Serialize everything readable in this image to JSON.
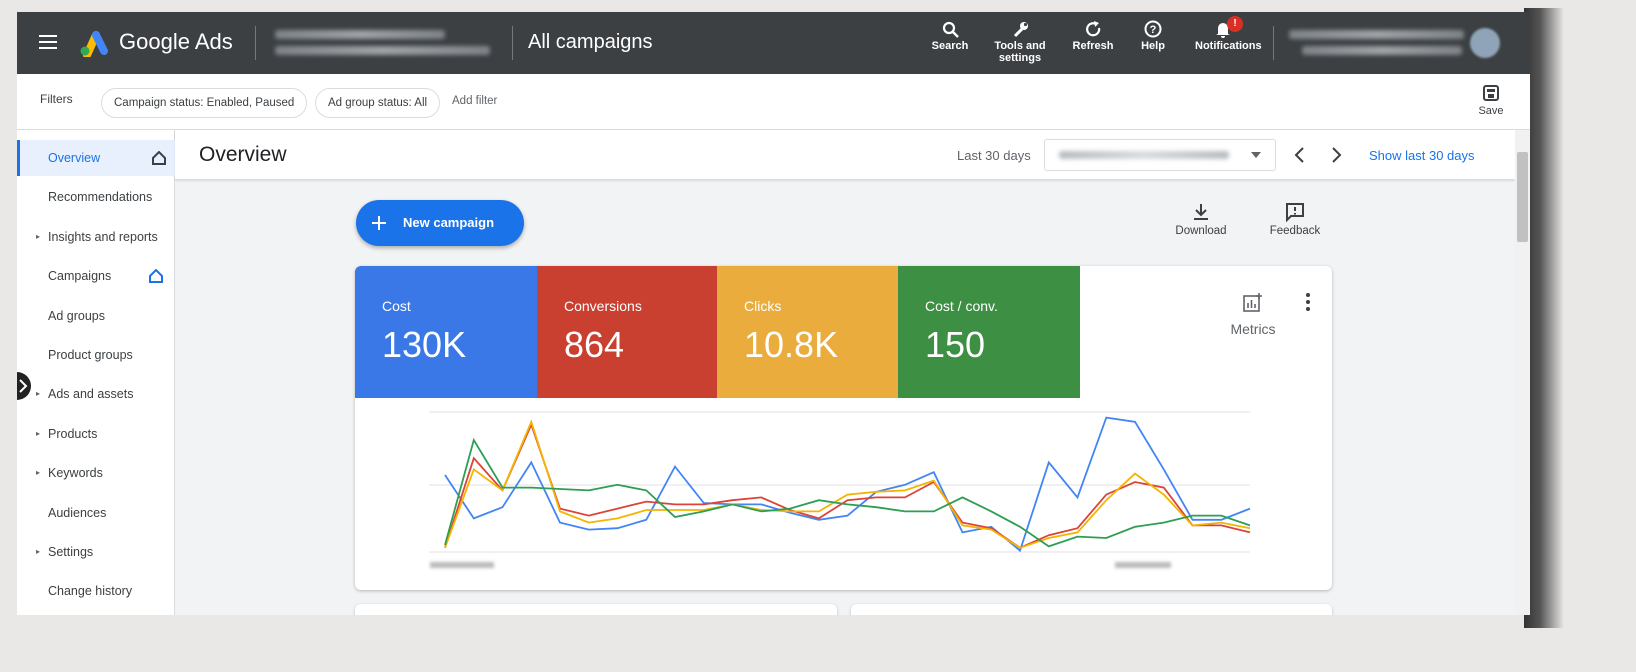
{
  "top_bar": {
    "product": "Google Ads",
    "page_title": "All campaigns",
    "actions": [
      "Search",
      "Tools and settings",
      "Refresh",
      "Help",
      "Notifications"
    ],
    "notification_badge": "!"
  },
  "filters": {
    "label": "Filters",
    "chips": [
      "Campaign status: Enabled, Paused",
      "Ad group status: All"
    ],
    "add": "Add filter",
    "save": "Save"
  },
  "sidebar": {
    "items": [
      {
        "label": "Overview",
        "expandable": false,
        "home_icon": true,
        "selected": true
      },
      {
        "label": "Recommendations",
        "expandable": false,
        "home_icon": false,
        "selected": false
      },
      {
        "label": "Insights and reports",
        "expandable": true,
        "home_icon": false,
        "selected": false
      },
      {
        "label": "Campaigns",
        "expandable": false,
        "home_icon": true,
        "selected": false
      },
      {
        "label": "Ad groups",
        "expandable": false,
        "home_icon": false,
        "selected": false
      },
      {
        "label": "Product groups",
        "expandable": false,
        "home_icon": false,
        "selected": false
      },
      {
        "label": "Ads and assets",
        "expandable": true,
        "home_icon": false,
        "selected": false
      },
      {
        "label": "Products",
        "expandable": true,
        "home_icon": false,
        "selected": false
      },
      {
        "label": "Keywords",
        "expandable": true,
        "home_icon": false,
        "selected": false
      },
      {
        "label": "Audiences",
        "expandable": false,
        "home_icon": false,
        "selected": false
      },
      {
        "label": "Settings",
        "expandable": true,
        "home_icon": false,
        "selected": false
      },
      {
        "label": "Change history",
        "expandable": false,
        "home_icon": false,
        "selected": false
      }
    ]
  },
  "header": {
    "title": "Overview",
    "range_label": "Last 30 days",
    "show_button": "Show last 30 days"
  },
  "toolbar": {
    "new_campaign": "New campaign",
    "download": "Download",
    "feedback": "Feedback"
  },
  "metrics_panel": {
    "button": "Metrics",
    "ylim": [
      0,
      100
    ],
    "metrics": [
      {
        "label": "Cost",
        "value": "130K",
        "color": "#4285f4",
        "tile_color": "#3b78e7",
        "trend": [
          55,
          24,
          32,
          64,
          21,
          16,
          17,
          23,
          61,
          35,
          34,
          34,
          28,
          23,
          26,
          43,
          48,
          57,
          14,
          18,
          1,
          64,
          39,
          96,
          93,
          59,
          23,
          23,
          31
        ]
      },
      {
        "label": "Conversions",
        "value": "864",
        "color": "#db4437",
        "tile_color": "#c93f30",
        "trend": [
          3,
          67,
          44,
          91,
          31,
          26,
          31,
          36,
          34,
          34,
          37,
          39,
          30,
          24,
          37,
          39,
          39,
          50,
          21,
          17,
          3,
          12,
          17,
          41,
          50,
          46,
          19,
          19,
          14
        ]
      },
      {
        "label": "Clicks",
        "value": "10.8K",
        "color": "#f4b400",
        "tile_color": "#eaac3c",
        "trend": [
          3,
          59,
          44,
          93,
          29,
          21,
          24,
          30,
          30,
          30,
          34,
          30,
          29,
          29,
          41,
          43,
          44,
          51,
          19,
          16,
          3,
          10,
          14,
          37,
          56,
          41,
          19,
          21,
          17
        ]
      },
      {
        "label": "Cost / conv.",
        "value": "150",
        "color": "#2e9e52",
        "tile_color": "#3d8f44",
        "trend": [
          5,
          80,
          46,
          46,
          45,
          44,
          48,
          44,
          25,
          29,
          34,
          29,
          31,
          37,
          34,
          32,
          29,
          29,
          39,
          29,
          18,
          4,
          11,
          10,
          18,
          21,
          26,
          26,
          19
        ]
      }
    ]
  }
}
